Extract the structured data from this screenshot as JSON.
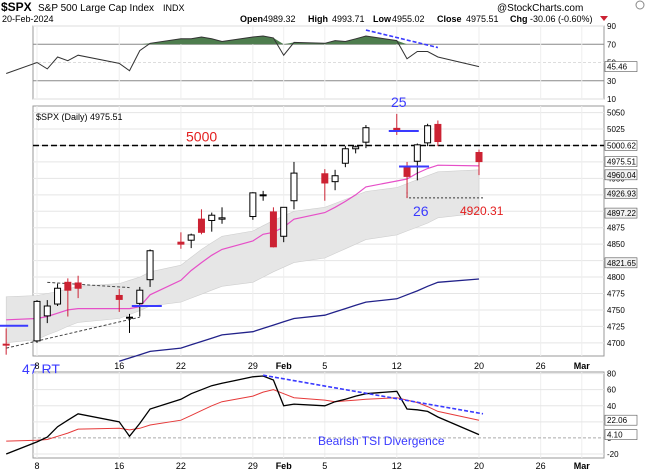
{
  "header": {
    "symbol": "$SPX",
    "name": "S&P 500 Large Cap Index",
    "exchange": "INDX",
    "date": "20-Feb-2024",
    "watermark": "@StockCharts.com",
    "open_label": "Open",
    "open": "4989.32",
    "high_label": "High",
    "high": "4993.71",
    "low_label": "Low",
    "low": "4955.02",
    "close_label": "Close",
    "close": "4975.51",
    "chg_label": "Chg",
    "chg": "-30.06 (-0.60%)"
  },
  "colors": {
    "up": "#000000",
    "down": "#cc2233",
    "envelope_fill": "#e6e6e6",
    "ma_short": "#e64fc8",
    "ma_long": "#22228a",
    "rsi_overbought_fill": "#4e7d4e",
    "annotation_blue": "#3a3aff",
    "annotation_red": "#e31e1e",
    "tsi_line": "#000000",
    "tsi_signal": "#e63a3a"
  },
  "chart_data": [
    {
      "type": "line",
      "panel": "RSI",
      "yticks": [
        90,
        70,
        50,
        30,
        10
      ],
      "ylim": [
        10,
        90
      ],
      "current_value_label": "45.46",
      "x": [
        "2024-01-05",
        "2024-01-08",
        "2024-01-09",
        "2024-01-10",
        "2024-01-11",
        "2024-01-12",
        "2024-01-16",
        "2024-01-17",
        "2024-01-18",
        "2024-01-19",
        "2024-01-22",
        "2024-01-23",
        "2024-01-24",
        "2024-01-25",
        "2024-01-26",
        "2024-01-29",
        "2024-01-30",
        "2024-01-31",
        "2024-02-01",
        "2024-02-02",
        "2024-02-05",
        "2024-02-06",
        "2024-02-07",
        "2024-02-08",
        "2024-02-09",
        "2024-02-12",
        "2024-02-13",
        "2024-02-14",
        "2024-02-15",
        "2024-02-16",
        "2024-02-20"
      ],
      "values": [
        38,
        50,
        43,
        56,
        52,
        58,
        49,
        41,
        63,
        71,
        76,
        76,
        78,
        76,
        73,
        78,
        79,
        77,
        58,
        72,
        71,
        74,
        73,
        76,
        79,
        74,
        54,
        62,
        62,
        56,
        45.46
      ],
      "annotations": [
        {
          "type": "divergence-line",
          "color": "#3a3aff",
          "x": [
            "2024-02-09",
            "2024-02-16"
          ],
          "y": [
            79,
            62
          ]
        }
      ]
    },
    {
      "type": "candlestick",
      "panel": "price",
      "legend": "$SPX (Daily) 4975.51",
      "yticks": [
        5050,
        5025,
        5000,
        4975,
        4950,
        4925,
        4900,
        4875,
        4850,
        4825,
        4800,
        4775,
        4750,
        4725,
        4700
      ],
      "ylim": [
        4680,
        5060
      ],
      "x_tick_labels": [
        {
          "x": "2024-01-08",
          "label": "8"
        },
        {
          "x": "2024-01-16",
          "label": "16"
        },
        {
          "x": "2024-01-22",
          "label": "22"
        },
        {
          "x": "2024-01-29",
          "label": "29"
        },
        {
          "x": "2024-02-01",
          "label": "Feb"
        },
        {
          "x": "2024-02-05",
          "label": "5"
        },
        {
          "x": "2024-02-12",
          "label": "12"
        },
        {
          "x": "2024-02-20",
          "label": "20"
        },
        {
          "x": "2024-02-26",
          "label": "26"
        },
        {
          "x": "2024-03-01",
          "label": "Mar"
        }
      ],
      "value_labels": [
        {
          "value": 5000,
          "label": "5000.62"
        },
        {
          "value": 4975.51,
          "label": "4975.51"
        },
        {
          "value": 4960,
          "label": "4960.04"
        },
        {
          "value": 4926.93,
          "label": "4926.93"
        },
        {
          "value": 4897.22,
          "label": "4897.22"
        },
        {
          "value": 4821.65,
          "label": "4821.65"
        }
      ],
      "candles": [
        {
          "date": "2024-01-05",
          "open": 4698,
          "high": 4722,
          "low": 4682,
          "close": 4697
        },
        {
          "date": "2024-01-08",
          "open": 4703,
          "high": 4765,
          "low": 4700,
          "close": 4763
        },
        {
          "date": "2024-01-09",
          "open": 4741,
          "high": 4765,
          "low": 4730,
          "close": 4756
        },
        {
          "date": "2024-01-10",
          "open": 4759,
          "high": 4790,
          "low": 4756,
          "close": 4783
        },
        {
          "date": "2024-01-11",
          "open": 4792,
          "high": 4798,
          "low": 4740,
          "close": 4780
        },
        {
          "date": "2024-01-12",
          "open": 4791,
          "high": 4802,
          "low": 4768,
          "close": 4783
        },
        {
          "date": "2024-01-16",
          "open": 4772,
          "high": 4782,
          "low": 4747,
          "close": 4766
        },
        {
          "date": "2024-01-17",
          "open": 4739,
          "high": 4744,
          "low": 4715,
          "close": 4739
        },
        {
          "date": "2024-01-18",
          "open": 4760,
          "high": 4785,
          "low": 4740,
          "close": 4780
        },
        {
          "date": "2024-01-19",
          "open": 4796,
          "high": 4842,
          "low": 4785,
          "close": 4840
        },
        {
          "date": "2024-01-22",
          "open": 4853,
          "high": 4868,
          "low": 4843,
          "close": 4850
        },
        {
          "date": "2024-01-23",
          "open": 4856,
          "high": 4866,
          "low": 4844,
          "close": 4864
        },
        {
          "date": "2024-01-24",
          "open": 4888,
          "high": 4903,
          "low": 4865,
          "close": 4868
        },
        {
          "date": "2024-01-25",
          "open": 4886,
          "high": 4898,
          "low": 4869,
          "close": 4894
        },
        {
          "date": "2024-01-26",
          "open": 4888,
          "high": 4906,
          "low": 4881,
          "close": 4890
        },
        {
          "date": "2024-01-29",
          "open": 4892,
          "high": 4929,
          "low": 4887,
          "close": 4928
        },
        {
          "date": "2024-01-30",
          "open": 4925,
          "high": 4931,
          "low": 4916,
          "close": 4925
        },
        {
          "date": "2024-01-31",
          "open": 4899,
          "high": 4906,
          "low": 4845,
          "close": 4846
        },
        {
          "date": "2024-02-01",
          "open": 4862,
          "high": 4906,
          "low": 4853,
          "close": 4906
        },
        {
          "date": "2024-02-02",
          "open": 4916,
          "high": 4975,
          "low": 4903,
          "close": 4958
        },
        {
          "date": "2024-02-05",
          "open": 4957,
          "high": 4964,
          "low": 4916,
          "close": 4943
        },
        {
          "date": "2024-02-06",
          "open": 4945,
          "high": 4963,
          "low": 4932,
          "close": 4954
        },
        {
          "date": "2024-02-07",
          "open": 4973,
          "high": 4999,
          "low": 4967,
          "close": 4995
        },
        {
          "date": "2024-02-08",
          "open": 4995,
          "high": 5000,
          "low": 4988,
          "close": 4998
        },
        {
          "date": "2024-02-09",
          "open": 5005,
          "high": 5031,
          "low": 4996,
          "close": 5027
        },
        {
          "date": "2024-02-12",
          "open": 5026,
          "high": 5048,
          "low": 5016,
          "close": 5022
        },
        {
          "date": "2024-02-13",
          "open": 4967,
          "high": 4975,
          "low": 4920,
          "close": 4953
        },
        {
          "date": "2024-02-14",
          "open": 4976,
          "high": 5003,
          "low": 4947,
          "close": 5001
        },
        {
          "date": "2024-02-15",
          "open": 5004,
          "high": 5033,
          "low": 4999,
          "close": 5030
        },
        {
          "date": "2024-02-16",
          "open": 5032,
          "high": 5038,
          "low": 4999,
          "close": 5006
        },
        {
          "date": "2024-02-20",
          "open": 4989.32,
          "high": 4993.71,
          "low": 4955.02,
          "close": 4975.51
        }
      ],
      "ma_short": [
        4735,
        4737,
        4740,
        4745,
        4750,
        4752,
        4752,
        4752,
        4755,
        4773,
        4795,
        4810,
        4822,
        4833,
        4842,
        4855,
        4865,
        4868,
        4876,
        4888,
        4898,
        4906,
        4915,
        4925,
        4937,
        4946,
        4949,
        4958,
        4965,
        4970,
        4969
      ],
      "ma_long": [
        4640,
        4645,
        4650,
        4656,
        4662,
        4667,
        4672,
        4677,
        4682,
        4687,
        4692,
        4697,
        4702,
        4707,
        4712,
        4717,
        4722,
        4727,
        4732,
        4737,
        4742,
        4747,
        4752,
        4757,
        4762,
        4767,
        4773,
        4779,
        4786,
        4792,
        4797
      ],
      "envelope_upper": [
        4770,
        4772,
        4775,
        4778,
        4782,
        4786,
        4790,
        4795,
        4800,
        4808,
        4818,
        4830,
        4842,
        4852,
        4862,
        4870,
        4878,
        4886,
        4893,
        4900,
        4906,
        4912,
        4918,
        4924,
        4930,
        4936,
        4942,
        4948,
        4954,
        4960,
        4963
      ],
      "envelope_lower": [
        4700,
        4705,
        4712,
        4718,
        4725,
        4731,
        4737,
        4743,
        4749,
        4756,
        4762,
        4768,
        4774,
        4780,
        4786,
        4792,
        4800,
        4808,
        4815,
        4822,
        4829,
        4836,
        4843,
        4850,
        4857,
        4864,
        4870,
        4876,
        4882,
        4890,
        4897
      ],
      "annotations": {
        "level_5000_label": "5000",
        "level_5000_value": 5000,
        "label_25": "25",
        "label_26": "26",
        "label_47": "47 RT",
        "low_label": "4920.31",
        "low_value": 4920.31,
        "trendline_dashed": {
          "x": [
            "2024-01-05",
            "2024-01-18"
          ],
          "y": [
            4698,
            4739
          ]
        },
        "triangle_dashed": {
          "x": [
            "2024-01-09",
            "2024-01-17"
          ],
          "y": [
            4792,
            4784
          ]
        }
      }
    },
    {
      "type": "line",
      "panel": "TSI",
      "yticks": [
        80,
        60,
        40,
        20,
        0,
        -20
      ],
      "ylim": [
        -25,
        82
      ],
      "value_labels": [
        {
          "value": 22.06,
          "label": "22.06"
        },
        {
          "value": 4.1,
          "label": "4.10"
        }
      ],
      "annotation_text": "Bearish TSI Divergence",
      "x": [
        "2024-01-05",
        "2024-01-08",
        "2024-01-09",
        "2024-01-10",
        "2024-01-11",
        "2024-01-12",
        "2024-01-16",
        "2024-01-17",
        "2024-01-18",
        "2024-01-19",
        "2024-01-22",
        "2024-01-23",
        "2024-01-24",
        "2024-01-25",
        "2024-01-26",
        "2024-01-29",
        "2024-01-30",
        "2024-01-31",
        "2024-02-01",
        "2024-02-02",
        "2024-02-05",
        "2024-02-06",
        "2024-02-07",
        "2024-02-08",
        "2024-02-09",
        "2024-02-12",
        "2024-02-13",
        "2024-02-14",
        "2024-02-15",
        "2024-02-16",
        "2024-02-20"
      ],
      "series": [
        {
          "values": [
            -20,
            -5,
            1,
            14,
            22,
            30,
            20,
            2,
            18,
            36,
            48,
            55,
            60,
            65,
            68,
            76,
            77,
            72,
            40,
            42,
            40,
            45,
            48,
            52,
            55,
            58,
            36,
            35,
            33,
            26,
            4.1
          ]
        },
        {
          "values": [
            -4,
            -3,
            -2,
            2,
            6,
            11,
            12,
            10,
            12,
            16,
            22,
            28,
            34,
            40,
            45,
            52,
            57,
            60,
            55,
            50,
            47,
            45,
            46,
            47,
            48,
            50,
            47,
            44,
            39,
            33,
            22.06
          ]
        }
      ],
      "annotations": [
        {
          "type": "divergence-line",
          "color": "#3a3aff",
          "x": [
            "2024-01-30",
            "2024-02-20"
          ],
          "y": [
            78,
            30
          ]
        }
      ]
    }
  ]
}
